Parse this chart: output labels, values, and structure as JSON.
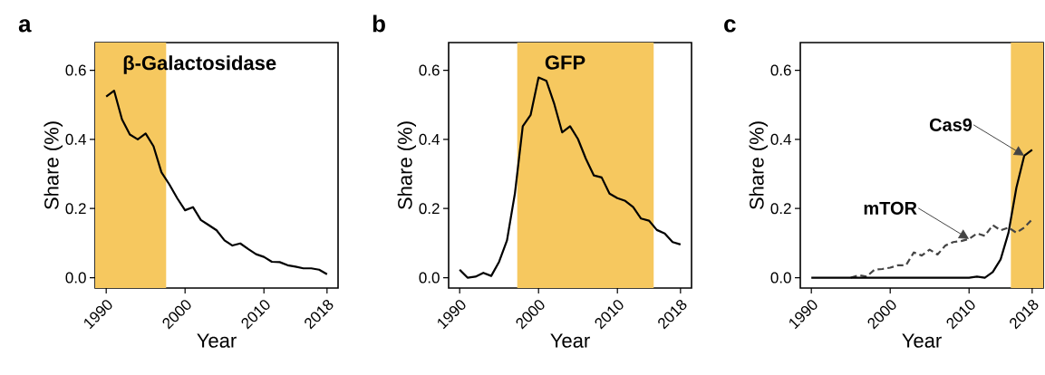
{
  "chart_data": [
    {
      "type": "line",
      "title": "a",
      "xlabel": "Year",
      "ylabel": "Share (%)",
      "x": [
        1990,
        1991,
        1992,
        1993,
        1994,
        1995,
        1996,
        1997,
        1998,
        1999,
        2000,
        2001,
        2002,
        2003,
        2004,
        2005,
        2006,
        2007,
        2008,
        2009,
        2010,
        2011,
        2012,
        2013,
        2014,
        2015,
        2016,
        2017,
        2018
      ],
      "series": [
        {
          "color": "#000000",
          "line_style": "solid",
          "values": [
            0.524,
            0.541,
            0.458,
            0.414,
            0.4,
            0.417,
            0.38,
            0.305,
            0.27,
            0.23,
            0.195,
            0.204,
            0.167,
            0.152,
            0.137,
            0.108,
            0.093,
            0.099,
            0.083,
            0.068,
            0.06,
            0.046,
            0.045,
            0.036,
            0.032,
            0.027,
            0.027,
            0.023,
            0.01
          ]
        }
      ],
      "bands": [
        {
          "axis": "x",
          "from": 1988.6,
          "to": 1997.6,
          "label": "β-Galactosidase",
          "color": "#f6c85f"
        }
      ],
      "xlim": [
        1988.6,
        2019.4
      ],
      "ylim": [
        -0.03,
        0.68
      ],
      "xticks": [
        1990,
        2000,
        2010,
        2018
      ],
      "yticks": [
        {
          "value": 0,
          "label": "0.0"
        },
        {
          "value": 0.2,
          "label": "0.2"
        },
        {
          "value": 0.4,
          "label": "0.4"
        },
        {
          "value": 0.6,
          "label": "0.6"
        }
      ],
      "grid": false
    },
    {
      "type": "line",
      "title": "b",
      "xlabel": "Year",
      "ylabel": "Share (%)",
      "x": [
        1990,
        1991,
        1992,
        1993,
        1994,
        1995,
        1996,
        1997,
        1998,
        1999,
        2000,
        2001,
        2002,
        2003,
        2004,
        2005,
        2006,
        2007,
        2008,
        2009,
        2010,
        2011,
        2012,
        2013,
        2014,
        2015,
        2016,
        2017,
        2018
      ],
      "series": [
        {
          "color": "#000000",
          "line_style": "solid",
          "values": [
            0.023,
            0.0,
            0.003,
            0.014,
            0.005,
            0.046,
            0.108,
            0.243,
            0.438,
            0.471,
            0.579,
            0.569,
            0.502,
            0.42,
            0.438,
            0.401,
            0.344,
            0.296,
            0.29,
            0.243,
            0.23,
            0.222,
            0.204,
            0.171,
            0.165,
            0.138,
            0.128,
            0.103,
            0.096
          ]
        }
      ],
      "bands": [
        {
          "axis": "x",
          "from": 1997.3,
          "to": 2014.6,
          "label": "GFP",
          "color": "#f6c85f"
        }
      ],
      "xlim": [
        1988.6,
        2019.4
      ],
      "ylim": [
        -0.03,
        0.68
      ],
      "xticks": [
        1990,
        2000,
        2010,
        2018
      ],
      "yticks": [
        {
          "value": 0,
          "label": "0.0"
        },
        {
          "value": 0.2,
          "label": "0.2"
        },
        {
          "value": 0.4,
          "label": "0.4"
        },
        {
          "value": 0.6,
          "label": "0.6"
        }
      ],
      "grid": false
    },
    {
      "type": "line",
      "title": "c",
      "xlabel": "Year",
      "ylabel": "Share (%)",
      "series": [
        {
          "name": "mTOR",
          "color": "#444444",
          "line_style": "dashed",
          "x": [
            1995,
            1996,
            1997,
            1998,
            1999,
            2000,
            2001,
            2002,
            2003,
            2004,
            2005,
            2006,
            2007,
            2008,
            2009,
            2010,
            2011,
            2012,
            2013,
            2014,
            2015,
            2016,
            2017,
            2018
          ],
          "values": [
            0,
            0.007,
            0.003,
            0.023,
            0.025,
            0.029,
            0.036,
            0.036,
            0.073,
            0.064,
            0.081,
            0.067,
            0.093,
            0.103,
            0.106,
            0.112,
            0.128,
            0.121,
            0.152,
            0.137,
            0.145,
            0.13,
            0.145,
            0.169
          ]
        },
        {
          "name": "Cas9",
          "color": "#000000",
          "line_style": "solid",
          "x": [
            1990,
            1991,
            1992,
            1993,
            1994,
            1995,
            1996,
            1997,
            1998,
            1999,
            2000,
            2001,
            2002,
            2003,
            2004,
            2005,
            2006,
            2007,
            2008,
            2009,
            2010,
            2011,
            2012,
            2013,
            2014,
            2015,
            2016,
            2017,
            2018
          ],
          "values": [
            0,
            0,
            0,
            0,
            0,
            0,
            0,
            0,
            0,
            0,
            0,
            0,
            0,
            0,
            0,
            0,
            0,
            0,
            0,
            0,
            0,
            0.003,
            0,
            0.016,
            0.053,
            0.13,
            0.26,
            0.353,
            0.37
          ]
        }
      ],
      "bands": [
        {
          "axis": "x",
          "from": 2015.3,
          "to": 2019.4,
          "color": "#f6c85f"
        }
      ],
      "xlim": [
        1988.6,
        2019.4
      ],
      "ylim": [
        -0.03,
        0.68
      ],
      "xticks": [
        1990,
        2000,
        2010,
        2018
      ],
      "yticks": [
        {
          "value": 0,
          "label": "0.0"
        },
        {
          "value": 0.2,
          "label": "0.2"
        },
        {
          "value": 0.4,
          "label": "0.4"
        },
        {
          "value": 0.6,
          "label": "0.6"
        }
      ],
      "grid": false
    }
  ]
}
